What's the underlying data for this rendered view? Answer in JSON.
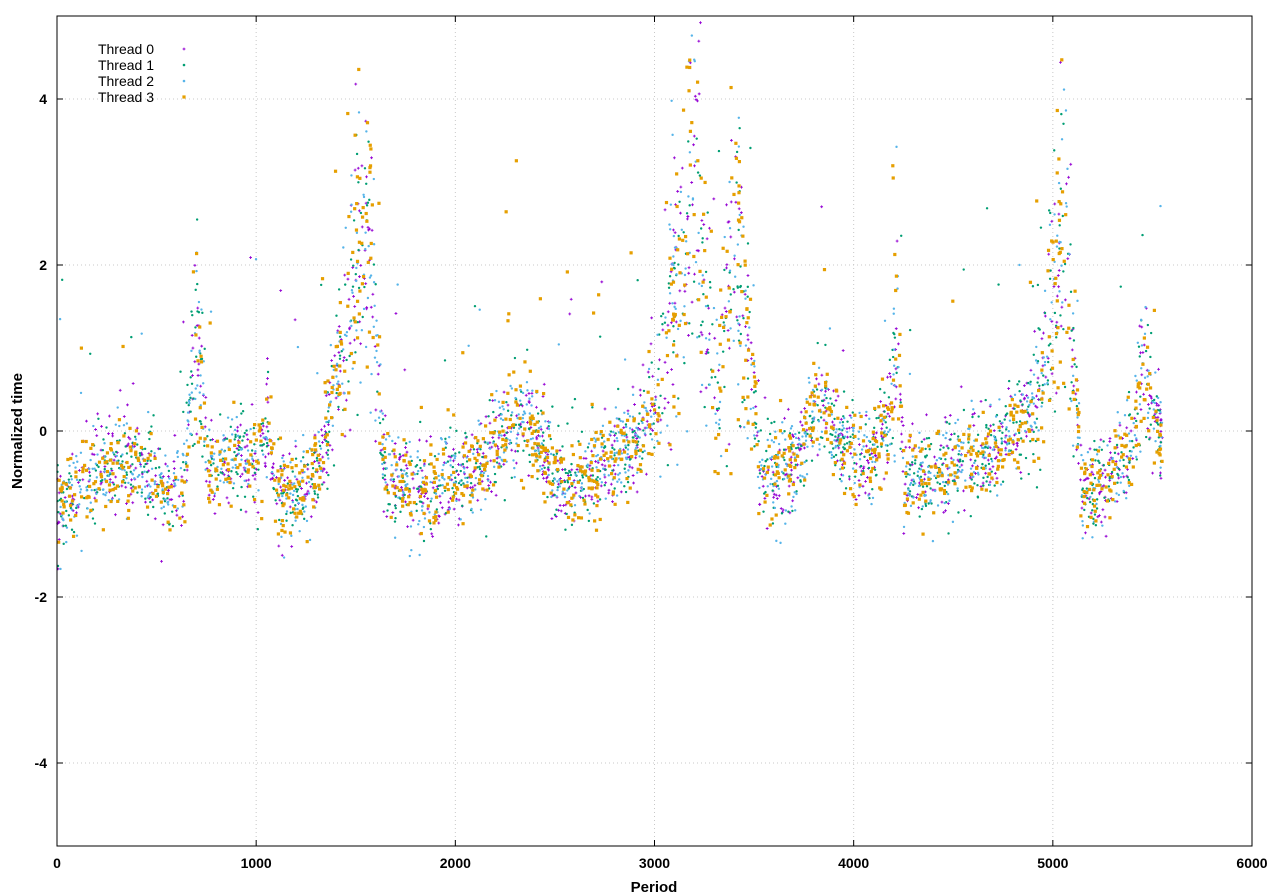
{
  "chart_data": {
    "type": "scatter",
    "title": "",
    "xlabel": "Period",
    "ylabel": "Normalized time",
    "xlim": [
      0,
      6000
    ],
    "ylim": [
      -5,
      5
    ],
    "xticks": [
      0,
      1000,
      2000,
      3000,
      4000,
      5000,
      6000
    ],
    "yticks": [
      -4,
      -2,
      0,
      2,
      4
    ],
    "grid": true,
    "legend_position": "top-left",
    "series": [
      {
        "name": "Thread 0",
        "color": "#9400d3",
        "marker": "plus",
        "seed": 11
      },
      {
        "name": "Thread 1",
        "color": "#009e73",
        "marker": "dot",
        "seed": 23
      },
      {
        "name": "Thread 2",
        "color": "#56b4e9",
        "marker": "dot",
        "seed": 37
      },
      {
        "name": "Thread 3",
        "color": "#e69f00",
        "marker": "square",
        "seed": 51
      }
    ],
    "x_max_data": 5550,
    "trend_profile": [
      [
        0,
        -0.95
      ],
      [
        120,
        -0.7
      ],
      [
        300,
        -0.35
      ],
      [
        470,
        -0.5
      ],
      [
        560,
        -0.8
      ],
      [
        640,
        -0.6
      ],
      [
        700,
        1.3
      ],
      [
        740,
        0.2
      ],
      [
        760,
        -0.5
      ],
      [
        900,
        -0.3
      ],
      [
        1000,
        -0.4
      ],
      [
        1060,
        0.2
      ],
      [
        1100,
        -0.8
      ],
      [
        1250,
        -0.7
      ],
      [
        1320,
        -0.4
      ],
      [
        1380,
        0.4
      ],
      [
        1460,
        1.2
      ],
      [
        1560,
        2.8
      ],
      [
        1600,
        1.2
      ],
      [
        1640,
        -0.4
      ],
      [
        1700,
        -0.5
      ],
      [
        1800,
        -0.8
      ],
      [
        1950,
        -0.6
      ],
      [
        2100,
        -0.4
      ],
      [
        2250,
        0.0
      ],
      [
        2350,
        0.2
      ],
      [
        2450,
        -0.3
      ],
      [
        2550,
        -0.7
      ],
      [
        2700,
        -0.5
      ],
      [
        2850,
        -0.3
      ],
      [
        2950,
        0.0
      ],
      [
        3050,
        0.8
      ],
      [
        3150,
        2.3
      ],
      [
        3200,
        3.2
      ],
      [
        3260,
        1.5
      ],
      [
        3320,
        0.6
      ],
      [
        3400,
        2.4
      ],
      [
        3460,
        1.3
      ],
      [
        3500,
        0.5
      ],
      [
        3530,
        -0.6
      ],
      [
        3700,
        -0.4
      ],
      [
        3820,
        0.3
      ],
      [
        3950,
        -0.2
      ],
      [
        4100,
        -0.3
      ],
      [
        4190,
        0.3
      ],
      [
        4220,
        1.3
      ],
      [
        4250,
        -0.6
      ],
      [
        4400,
        -0.5
      ],
      [
        4600,
        -0.3
      ],
      [
        4800,
        0.0
      ],
      [
        4950,
        0.5
      ],
      [
        5000,
        1.5
      ],
      [
        5060,
        2.3
      ],
      [
        5110,
        0.6
      ],
      [
        5150,
        -0.8
      ],
      [
        5300,
        -0.5
      ],
      [
        5400,
        -0.2
      ],
      [
        5460,
        0.8
      ],
      [
        5500,
        0.2
      ],
      [
        5550,
        -0.2
      ]
    ]
  }
}
